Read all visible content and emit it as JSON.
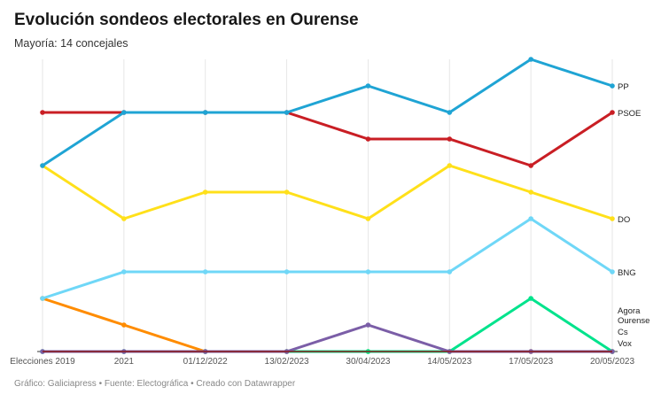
{
  "title": "Evolución sondeos electorales en Ourense",
  "subtitle": "Mayoría: 14 concejales",
  "footer": "Gráfico: Galiciapress • Fuente: Electográfica • Creado con Datawrapper",
  "chart_data": {
    "type": "line",
    "title": "Evolución sondeos electorales en Ourense",
    "categories": [
      "Elecciones 2019",
      "2021",
      "01/12/2022",
      "13/02/2023",
      "30/04/2023",
      "14/05/2023",
      "17/05/2023",
      "20/05/2023"
    ],
    "ylim": [
      0,
      11
    ],
    "grid": "vertical",
    "series": [
      {
        "name": "Vox",
        "color": "#8b1a1a",
        "values": [
          0,
          0,
          0,
          0,
          0,
          0,
          0,
          0
        ]
      },
      {
        "name": "Cs",
        "color": "#ff8c00",
        "values": [
          2,
          1,
          0,
          0,
          0,
          0,
          0,
          0
        ]
      },
      {
        "name": "",
        "color": "#00e38c",
        "values": [
          0,
          0,
          0,
          0,
          0,
          0,
          2,
          0
        ]
      },
      {
        "name": "Agora Ourense",
        "color": "#7b5ea7",
        "values": [
          0,
          0,
          0,
          0,
          1,
          0,
          0,
          0
        ]
      },
      {
        "name": "BNG",
        "color": "#6fd7f7",
        "values": [
          2,
          3,
          3,
          3,
          3,
          3,
          5,
          3
        ]
      },
      {
        "name": "DO",
        "color": "#ffe01a",
        "values": [
          7,
          5,
          6,
          6,
          5,
          7,
          6,
          5
        ]
      },
      {
        "name": "PSOE",
        "color": "#c91e24",
        "values": [
          9,
          9,
          9,
          9,
          8,
          8,
          7,
          9
        ]
      },
      {
        "name": "PP",
        "color": "#1fa4d4",
        "values": [
          7,
          9,
          9,
          9,
          10,
          9,
          11,
          10
        ]
      }
    ]
  }
}
